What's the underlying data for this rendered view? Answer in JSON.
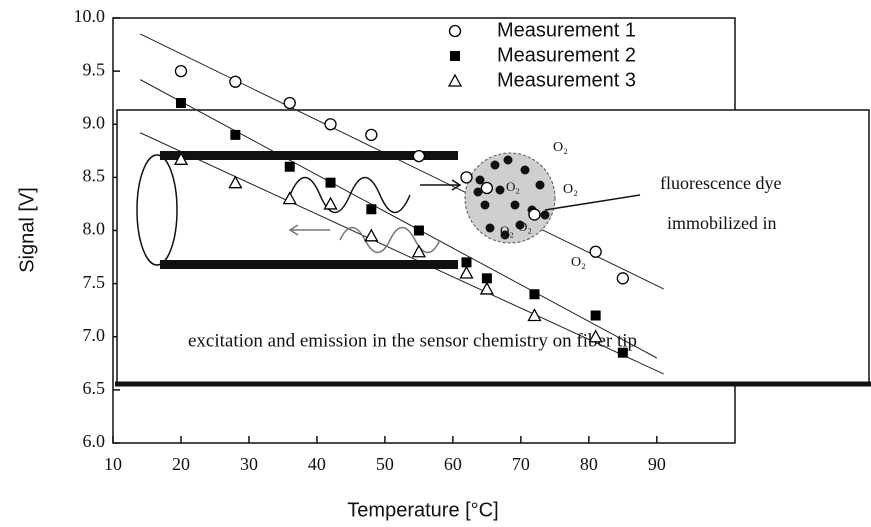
{
  "chart_data": {
    "type": "scatter",
    "x_label": "Temperature [°C]",
    "y_label": "Signal [V]",
    "xlim": [
      10,
      101.5
    ],
    "xticks": [
      10,
      20,
      30,
      40,
      50,
      60,
      70,
      80,
      90
    ],
    "ylim": [
      6,
      10
    ],
    "yticks": [
      {
        "value": 6,
        "label": "6.0"
      },
      {
        "value": 6.5,
        "label": "6.5"
      },
      {
        "value": 7,
        "label": "7.0"
      },
      {
        "value": 7.5,
        "label": "7.5"
      },
      {
        "value": 8,
        "label": "8.0"
      },
      {
        "value": 8.5,
        "label": "8.5"
      },
      {
        "value": 9,
        "label": "9.0"
      },
      {
        "value": 9.5,
        "label": "9.5"
      },
      {
        "value": 10,
        "label": "10.0"
      }
    ],
    "series": [
      {
        "name": "Measurement 1",
        "marker": "circle",
        "color": "#000000",
        "x": [
          20,
          28,
          36,
          42,
          48,
          55,
          62,
          65,
          72,
          81,
          85
        ],
        "values": [
          9.5,
          9.4,
          9.2,
          9.0,
          8.9,
          8.7,
          8.5,
          8.4,
          8.15,
          7.8,
          7.55
        ],
        "fit": {
          "x": [
            14,
            91
          ],
          "values": [
            9.85,
            7.45
          ]
        }
      },
      {
        "name": "Measurement 2",
        "marker": "square",
        "color": "#000000",
        "x": [
          20,
          28,
          36,
          42,
          48,
          55,
          62,
          65,
          72,
          81,
          85
        ],
        "values": [
          9.2,
          8.9,
          8.6,
          8.45,
          8.2,
          8.0,
          7.7,
          7.55,
          7.4,
          7.2,
          6.85
        ],
        "fit": {
          "x": [
            14,
            90
          ],
          "values": [
            9.42,
            6.8
          ]
        }
      },
      {
        "name": "Measurement 3",
        "marker": "triangle",
        "color": "#000000",
        "x": [
          20,
          28,
          36,
          42,
          48,
          55,
          62,
          65,
          72,
          81
        ],
        "values": [
          8.67,
          8.45,
          8.3,
          8.25,
          7.95,
          7.8,
          7.6,
          7.45,
          7.2,
          7.0
        ],
        "fit": {
          "x": [
            14,
            91
          ],
          "values": [
            8.92,
            6.65
          ]
        }
      }
    ]
  },
  "diagram": {
    "dye_label_1": "fluorescence dye",
    "dye_label_2": "immobilized in",
    "caption": "excitation and emission in the sensor chemistry on fiber tip",
    "oxygen_labels": [
      "O₂",
      "O₂",
      "O₂",
      "O₂",
      "O₂",
      "O₂"
    ]
  }
}
